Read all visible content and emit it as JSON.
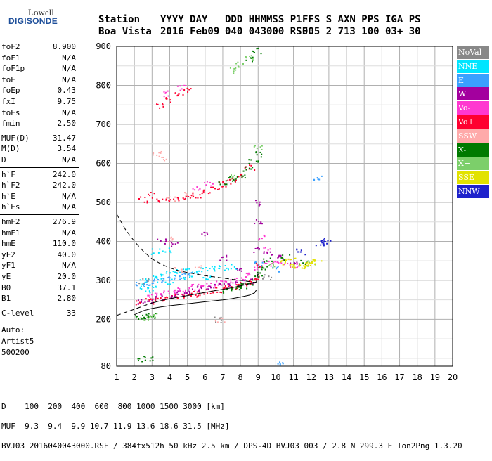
{
  "logo": {
    "line1": "Lowell",
    "line2": "DIGISONDE"
  },
  "header": {
    "labels": [
      "Station",
      "YYYY DAY",
      "DDD HHMMSS P1",
      "FFS S AXN PPS IGA PS"
    ],
    "values": [
      "Boa Vista",
      "2016 Feb09",
      "040 043000 RSF",
      "005 2 713 100 03+ 30"
    ]
  },
  "params": {
    "group1": [
      {
        "k": "foF2",
        "v": "8.900"
      },
      {
        "k": "foF1",
        "v": "N/A"
      },
      {
        "k": "foF1p",
        "v": "N/A"
      },
      {
        "k": "foE",
        "v": "N/A"
      },
      {
        "k": "foEp",
        "v": "0.43"
      },
      {
        "k": "fxI",
        "v": "9.75"
      },
      {
        "k": "foEs",
        "v": "N/A"
      },
      {
        "k": "fmin",
        "v": "2.50"
      }
    ],
    "group2": [
      {
        "k": "MUF(D)",
        "v": "31.47"
      },
      {
        "k": "M(D)",
        "v": "3.54"
      },
      {
        "k": "D",
        "v": "N/A"
      }
    ],
    "group3": [
      {
        "k": "h`F",
        "v": "242.0"
      },
      {
        "k": "h`F2",
        "v": "242.0"
      },
      {
        "k": "h`E",
        "v": "N/A"
      },
      {
        "k": "h`Es",
        "v": "N/A"
      }
    ],
    "group4": [
      {
        "k": "hmF2",
        "v": "276.9"
      },
      {
        "k": "hmF1",
        "v": "N/A"
      },
      {
        "k": "hmE",
        "v": "110.0"
      },
      {
        "k": "yF2",
        "v": "40.0"
      },
      {
        "k": "yF1",
        "v": "N/A"
      },
      {
        "k": "yE",
        "v": "20.0"
      },
      {
        "k": "B0",
        "v": "37.1"
      },
      {
        "k": "B1",
        "v": "2.80"
      }
    ],
    "clevel": {
      "k": "C-level",
      "v": "33"
    },
    "auto": [
      "Auto:",
      "Artist5",
      "500200"
    ]
  },
  "legend": [
    {
      "label": "NoVal",
      "bg": "#888888",
      "fg": "#ffffff"
    },
    {
      "label": "NNE",
      "bg": "#00e5ff",
      "fg": "#ffffff"
    },
    {
      "label": "E",
      "bg": "#3aa0ff",
      "fg": "#ffffff"
    },
    {
      "label": "W",
      "bg": "#a3009e",
      "fg": "#ffffff"
    },
    {
      "label": "Vo-",
      "bg": "#ff38d0",
      "fg": "#ffffff"
    },
    {
      "label": "Vo+",
      "bg": "#ff0030",
      "fg": "#ffffff"
    },
    {
      "label": "SSW",
      "bg": "#ffaaaa",
      "fg": "#ffffff"
    },
    {
      "label": "X-",
      "bg": "#007a00",
      "fg": "#ffffff"
    },
    {
      "label": "X+",
      "bg": "#7ccf6a",
      "fg": "#ffffff"
    },
    {
      "label": "SSE",
      "bg": "#e2e200",
      "fg": "#ffffff"
    },
    {
      "label": "NNW",
      "bg": "#1e22cc",
      "fg": "#ffffff"
    }
  ],
  "footer": {
    "line1": "D    100  200  400  600  800 1000 1500 3000 [km]",
    "line2": "MUF  9.3  9.4  9.9 10.7 11.9 13.6 18.6 31.5 [MHz]",
    "line3": "BVJ03_2016040043000.RSF / 384fx512h 50 kHz 2.5 km / DPS-4D BVJ03 003 / 2.8 N 299.3 E Ion2Png 1.3.20"
  },
  "chart_data": {
    "type": "scatter",
    "xlim": [
      1,
      20
    ],
    "ylim": [
      80,
      900
    ],
    "xticks": [
      1,
      2,
      3,
      4,
      5,
      6,
      7,
      8,
      9,
      10,
      11,
      12,
      13,
      14,
      15,
      16,
      17,
      18,
      19,
      20
    ],
    "yticks": [
      80,
      200,
      300,
      400,
      500,
      600,
      700,
      800,
      900
    ],
    "grid": true,
    "series": [
      {
        "name": "Vo+",
        "color": "#ff0030",
        "points": [
          [
            2.3,
            245
          ],
          [
            2.8,
            248
          ],
          [
            3.2,
            252
          ],
          [
            3.8,
            255
          ],
          [
            4.3,
            258
          ],
          [
            4.8,
            262
          ],
          [
            5.3,
            266
          ],
          [
            5.8,
            270
          ],
          [
            6.3,
            273
          ],
          [
            6.8,
            276
          ],
          [
            7.3,
            280
          ],
          [
            7.8,
            285
          ],
          [
            8.2,
            290
          ],
          [
            8.5,
            298
          ],
          [
            8.8,
            310
          ],
          [
            8.9,
            340
          ],
          [
            3,
            520
          ],
          [
            3.5,
            508
          ],
          [
            4,
            505
          ],
          [
            4.5,
            507
          ],
          [
            5,
            513
          ],
          [
            5.5,
            520
          ],
          [
            6,
            528
          ],
          [
            6.5,
            538
          ],
          [
            7,
            548
          ],
          [
            7.5,
            556
          ],
          [
            8,
            568
          ],
          [
            8.5,
            590
          ],
          [
            2.5,
            508
          ],
          [
            3.5,
            750
          ],
          [
            4,
            765
          ],
          [
            4.5,
            780
          ],
          [
            5,
            790
          ]
        ]
      },
      {
        "name": "Vo-",
        "color": "#ff38d0",
        "points": [
          [
            3,
            262
          ],
          [
            3.5,
            268
          ],
          [
            4,
            272
          ],
          [
            4.5,
            276
          ],
          [
            5,
            280
          ],
          [
            5.5,
            284
          ],
          [
            6,
            288
          ],
          [
            6.5,
            292
          ],
          [
            7,
            296
          ],
          [
            7.5,
            300
          ],
          [
            8,
            305
          ],
          [
            8.5,
            315
          ],
          [
            9,
            330
          ],
          [
            9.5,
            345
          ],
          [
            10,
            352
          ],
          [
            10.5,
            348
          ],
          [
            11,
            340
          ],
          [
            9.2,
            410
          ],
          [
            9.5,
            380
          ],
          [
            3.8,
            780
          ],
          [
            4.6,
            795
          ],
          [
            5.5,
            540
          ],
          [
            6.2,
            550
          ]
        ]
      },
      {
        "name": "NNE",
        "color": "#00e5ff",
        "points": [
          [
            2.5,
            300
          ],
          [
            3,
            308
          ],
          [
            3.5,
            312
          ],
          [
            4,
            318
          ],
          [
            4.5,
            322
          ],
          [
            5,
            326
          ],
          [
            5.5,
            328
          ],
          [
            6,
            330
          ],
          [
            6.5,
            332
          ],
          [
            7,
            334
          ],
          [
            7.5,
            336
          ],
          [
            2.5,
            285
          ],
          [
            3,
            290
          ],
          [
            4,
            298
          ],
          [
            5,
            305
          ],
          [
            6,
            310
          ],
          [
            3.2,
            375
          ],
          [
            3.8,
            380
          ],
          [
            2.8,
            275
          ]
        ]
      },
      {
        "name": "E",
        "color": "#3aa0ff",
        "points": [
          [
            2.3,
            290
          ],
          [
            2.8,
            295
          ],
          [
            3.3,
            300
          ],
          [
            3.8,
            305
          ],
          [
            4.3,
            308
          ],
          [
            4.8,
            312
          ],
          [
            5.3,
            315
          ],
          [
            12.3,
            565
          ],
          [
            10.1,
            88
          ],
          [
            9,
            342
          ],
          [
            10,
            330
          ]
        ]
      },
      {
        "name": "W",
        "color": "#a3009e",
        "points": [
          [
            2.2,
            245
          ],
          [
            2.8,
            250
          ],
          [
            3.4,
            256
          ],
          [
            4,
            262
          ],
          [
            4.6,
            268
          ],
          [
            5.2,
            274
          ],
          [
            5.8,
            280
          ],
          [
            6.4,
            285
          ],
          [
            7,
            288
          ],
          [
            7.6,
            292
          ],
          [
            8.4,
            298
          ],
          [
            8.9,
            380
          ],
          [
            9,
            450
          ],
          [
            9.1,
            500
          ],
          [
            3.5,
            400
          ],
          [
            4.2,
            395
          ],
          [
            6,
            420
          ],
          [
            7,
            360
          ],
          [
            8,
            330
          ],
          [
            9.5,
            370
          ],
          [
            10.2,
            360
          ],
          [
            11,
            345
          ]
        ]
      },
      {
        "name": "X-",
        "color": "#007a00",
        "points": [
          [
            7.2,
            275
          ],
          [
            7.8,
            282
          ],
          [
            8.2,
            288
          ],
          [
            8.6,
            296
          ],
          [
            9,
            315
          ],
          [
            9.2,
            330
          ],
          [
            8.4,
            585
          ],
          [
            8.7,
            605
          ],
          [
            8.9,
            625
          ],
          [
            8,
            570
          ],
          [
            7.5,
            560
          ],
          [
            7,
            552
          ],
          [
            8.5,
            870
          ],
          [
            8.9,
            890
          ],
          [
            2.2,
            205
          ],
          [
            2.6,
            208
          ],
          [
            3,
            210
          ],
          [
            2.3,
            100
          ],
          [
            2.8,
            102
          ],
          [
            9.5,
            355
          ],
          [
            10.5,
            360
          ],
          [
            11.5,
            350
          ]
        ]
      },
      {
        "name": "X+",
        "color": "#7ccf6a",
        "points": [
          [
            7.5,
            840
          ],
          [
            8,
            855
          ],
          [
            8.5,
            872
          ],
          [
            3,
            210
          ],
          [
            2.5,
            205
          ],
          [
            9,
            640
          ],
          [
            7.6,
            565
          ],
          [
            9.7,
            340
          ],
          [
            12,
            345
          ]
        ]
      },
      {
        "name": "SSE",
        "color": "#e2e200",
        "points": [
          [
            10.5,
            345
          ],
          [
            11,
            340
          ],
          [
            11.5,
            343
          ],
          [
            12,
            347
          ],
          [
            12.3,
            350
          ],
          [
            11.2,
            335
          ],
          [
            10.8,
            355
          ],
          [
            11.8,
            338
          ]
        ]
      },
      {
        "name": "SSW",
        "color": "#ffaaaa",
        "points": [
          [
            4,
            510
          ],
          [
            5,
            520
          ],
          [
            3.3,
            625
          ],
          [
            3.5,
            615
          ],
          [
            4,
            405
          ],
          [
            6.8,
            200
          ],
          [
            4.5,
            330
          ],
          [
            5.5,
            335
          ]
        ]
      },
      {
        "name": "NNW",
        "color": "#1e22cc",
        "points": [
          [
            12.6,
            400
          ],
          [
            12.8,
            402
          ],
          [
            12.5,
            398
          ],
          [
            11.4,
            375
          ]
        ]
      },
      {
        "name": "NoVal",
        "color": "#888888",
        "points": [
          [
            6.7,
            200
          ],
          [
            2.5,
            300
          ],
          [
            9.5,
            310
          ]
        ]
      }
    ],
    "lines": [
      {
        "style": "dashed",
        "points": [
          [
            1,
            470
          ],
          [
            1.5,
            430
          ],
          [
            2,
            400
          ],
          [
            2.5,
            375
          ],
          [
            3,
            355
          ],
          [
            3.5,
            342
          ],
          [
            4,
            332
          ],
          [
            4.5,
            325
          ],
          [
            5,
            320
          ],
          [
            5.5,
            316
          ],
          [
            6,
            312
          ],
          [
            6.5,
            309
          ],
          [
            7,
            306
          ],
          [
            7.5,
            303
          ],
          [
            8,
            300
          ],
          [
            8.5,
            297
          ],
          [
            8.9,
            294
          ]
        ]
      },
      {
        "style": "dashed",
        "points": [
          [
            1,
            210
          ],
          [
            1.5,
            218
          ],
          [
            2,
            226
          ],
          [
            2.5,
            234
          ],
          [
            3,
            242
          ]
        ]
      },
      {
        "style": "solid",
        "points": [
          [
            3,
            242
          ],
          [
            3.5,
            248
          ],
          [
            4,
            253
          ],
          [
            4.5,
            257
          ],
          [
            5,
            261
          ],
          [
            5.5,
            265
          ],
          [
            6,
            269
          ],
          [
            6.5,
            273
          ],
          [
            7,
            277
          ],
          [
            7.5,
            281
          ],
          [
            8,
            286
          ],
          [
            8.5,
            291
          ],
          [
            8.9,
            296
          ],
          [
            9,
            320
          ]
        ]
      },
      {
        "style": "solid",
        "points": [
          [
            2,
            212
          ],
          [
            2.5,
            222
          ],
          [
            3,
            228
          ],
          [
            3.5,
            232
          ],
          [
            4,
            235
          ],
          [
            5,
            240
          ],
          [
            6,
            245
          ],
          [
            7,
            250
          ],
          [
            7.5,
            253
          ],
          [
            8,
            257
          ],
          [
            8.5,
            262
          ],
          [
            8.8,
            268
          ],
          [
            8.9,
            275
          ]
        ]
      }
    ]
  }
}
